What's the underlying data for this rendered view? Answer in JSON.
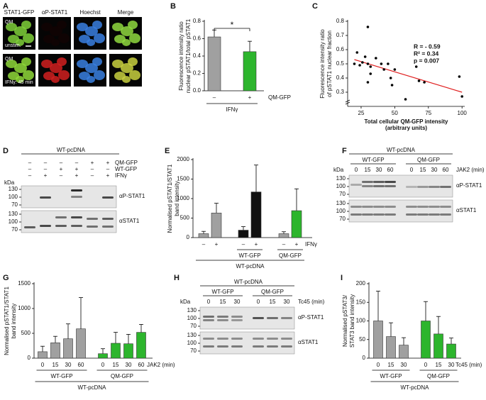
{
  "figure": {
    "A": {
      "label": "A",
      "columns": [
        "STAT1-GFP",
        "αP-STAT1",
        "Hoechst",
        "Merge"
      ],
      "rows": [
        {
          "cell": "QM",
          "condition": "unstim."
        },
        {
          "cell": "QM",
          "condition": "IFNγ: 45 min"
        }
      ]
    },
    "D": {
      "label": "D",
      "title": "WT-pcDNA",
      "unit": "kDa",
      "treatments": [
        {
          "name": "QM-GFP",
          "signs": [
            "–",
            "–",
            "–",
            "–",
            "+",
            "+"
          ]
        },
        {
          "name": "WT-GFP",
          "signs": [
            "–",
            "–",
            "+",
            "+",
            "–",
            "–"
          ]
        },
        {
          "name": "IFNγ",
          "signs": [
            "–",
            "+",
            "–",
            "+",
            "–",
            "+"
          ]
        }
      ],
      "markers": [
        130,
        100,
        70
      ],
      "blots": [
        "αP-STAT1",
        "αSTAT1"
      ]
    },
    "F": {
      "label": "F",
      "title": "WT-pcDNA",
      "groups": [
        "WT-GFP",
        "QM-GFP"
      ],
      "lanes": [
        0,
        15,
        30,
        60,
        0,
        15,
        30,
        60
      ],
      "lane_label": "JAK2 (min)",
      "unit": "kDa",
      "markers": [
        130,
        100,
        70
      ],
      "blots": [
        "αP-STAT1",
        "αSTAT1"
      ]
    },
    "H": {
      "label": "H",
      "title": "WT-pcDNA",
      "groups": [
        "WT-GFP",
        "QM-GFP"
      ],
      "lanes": [
        0,
        15,
        30,
        0,
        15,
        30
      ],
      "lane_label": "Tc45 (min)",
      "unit": "kDa",
      "markers": [
        130,
        100,
        70
      ],
      "blots": [
        "αP-STAT1",
        "αSTAT1"
      ]
    }
  },
  "chart_data": [
    {
      "type": "bar",
      "panel": "B",
      "ylabel": [
        "Fluorescence intensity ratio",
        "nuclear pSTAT1/total pSTAT1"
      ],
      "ylim": [
        0,
        0.8
      ],
      "yticks": [
        {
          "value": 0,
          "label": "0.0"
        },
        0.2,
        0.4,
        0.6,
        0.8
      ],
      "categories": [
        "–",
        "+"
      ],
      "values": [
        0.62,
        0.45
      ],
      "errors": [
        0.08,
        0.12
      ],
      "colors": [
        "#a0a0a0",
        "#2db52d"
      ],
      "x_label": "QM-GFP",
      "group_labels": [
        "IFNγ"
      ],
      "annotation": "*"
    },
    {
      "type": "scatter",
      "panel": "C",
      "ylabel": [
        "Fluorescence intensity ratio",
        "of pSTAT1 nuclear fraction"
      ],
      "xlabel": [
        "Total cellular QM-GFP intensity",
        "(arbitrary units)"
      ],
      "xlim": [
        15,
        102
      ],
      "xticks": [
        25,
        50,
        75,
        100
      ],
      "ylim": [
        0.2,
        0.8
      ],
      "yticks": [
        0.3,
        0.4,
        0.5,
        0.6,
        0.7,
        0.8
      ],
      "x": [
        20,
        22,
        24,
        26,
        28,
        30,
        30,
        32,
        30,
        32,
        36,
        40,
        42,
        45,
        47,
        48,
        50,
        58,
        66,
        68,
        72,
        98,
        100
      ],
      "values": [
        0.5,
        0.58,
        0.49,
        0.51,
        0.55,
        0.76,
        0.5,
        0.48,
        0.37,
        0.43,
        0.54,
        0.5,
        0.46,
        0.5,
        0.4,
        0.35,
        0.46,
        0.25,
        0.48,
        0.38,
        0.37,
        0.41,
        0.27
      ],
      "color": "#000000",
      "fit": {
        "x": [
          20,
          100
        ],
        "values": [
          0.53,
          0.3
        ],
        "color": "#e02020"
      },
      "annotations": [
        "R = - 0.59",
        "R² = 0.34",
        "p = 0.007"
      ]
    },
    {
      "type": "bar",
      "panel": "E",
      "ylabel": [
        "Normalised pSTAT1/STAT1",
        "band intensity"
      ],
      "ylim": [
        0,
        2000
      ],
      "yticks": [
        0,
        500,
        1000,
        1500,
        2000
      ],
      "categories": [
        "–",
        "+",
        "–",
        "+",
        "–",
        "+"
      ],
      "values": [
        100,
        630,
        190,
        1170,
        100,
        690
      ],
      "errors": [
        60,
        250,
        90,
        690,
        50,
        560
      ],
      "colors": [
        "#a0a0a0",
        "#a0a0a0",
        "#111111",
        "#111111",
        "#a0a0a0",
        "#2db52d"
      ],
      "x_label": "IFNγ",
      "group_labels": [
        "WT-GFP",
        "QM-GFP"
      ],
      "outer_label": "WT-pcDNA"
    },
    {
      "type": "bar",
      "panel": "G",
      "ylabel": [
        "Normalised pSTAT1/STAT1",
        "band intensity"
      ],
      "ylim": [
        0,
        1500
      ],
      "yticks": [
        0,
        500,
        1000,
        1500
      ],
      "categories": [
        "0",
        "15",
        "30",
        "60",
        "0",
        "15",
        "30",
        "60"
      ],
      "values": [
        130,
        310,
        390,
        590,
        90,
        300,
        290,
        520
      ],
      "errors": [
        110,
        130,
        300,
        630,
        100,
        220,
        190,
        160
      ],
      "colors": [
        "#a0a0a0",
        "#a0a0a0",
        "#a0a0a0",
        "#a0a0a0",
        "#2db52d",
        "#2db52d",
        "#2db52d",
        "#2db52d"
      ],
      "x_label": "JAK2 (min)",
      "group_labels": [
        "WT-GFP",
        "QM-GFP"
      ],
      "outer_label": "WT-pcDNA"
    },
    {
      "type": "bar",
      "panel": "I",
      "ylabel": [
        "Normalised pSTAT3/",
        "STAT3 band intensity"
      ],
      "ylim": [
        0,
        200
      ],
      "yticks": [
        0,
        50,
        100,
        150,
        200
      ],
      "categories": [
        "0",
        "15",
        "30",
        "0",
        "15",
        "30"
      ],
      "values": [
        100,
        58,
        35,
        100,
        65,
        38
      ],
      "errors": [
        80,
        37,
        20,
        52,
        47,
        16
      ],
      "colors": [
        "#a0a0a0",
        "#a0a0a0",
        "#a0a0a0",
        "#2db52d",
        "#2db52d",
        "#2db52d"
      ],
      "x_label": "Tc45 (min)",
      "group_labels": [
        "WT-GFP",
        "QM-GFP"
      ],
      "outer_label": "WT-pcDNA"
    }
  ]
}
